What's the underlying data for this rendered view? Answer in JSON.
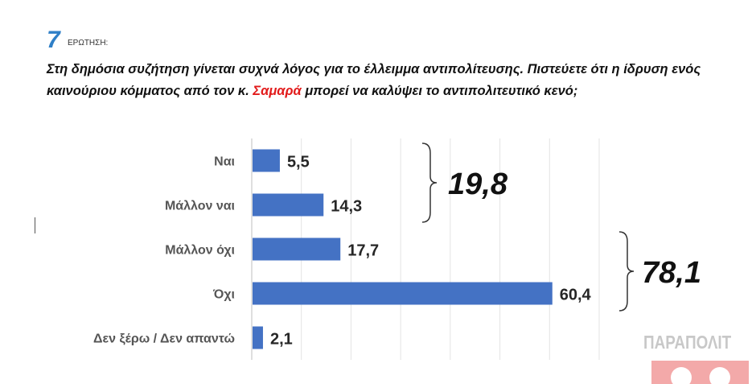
{
  "question": {
    "number": "7",
    "label": "ΕΡΩΤΗΣΗ:",
    "text_before": "Στη δημόσια συζήτηση γίνεται συχνά λόγος για το έλλειμμα αντιπολίτευσης. Πιστεύετε ότι η ίδρυση ενός καινούριου κόμματος από τον κ. ",
    "highlight": "Σαμαρά",
    "text_after": " μπορεί να καλύψει το αντιπολιτευτικό κενό;",
    "highlight_color": "#e21b1b"
  },
  "chart_data": {
    "type": "bar",
    "orientation": "horizontal",
    "categories": [
      "Ναι",
      "Μάλλον ναι",
      "Μάλλον όχι",
      "Όχι",
      "Δεν ξέρω / Δεν απαντώ"
    ],
    "values": [
      5.5,
      14.3,
      17.7,
      60.4,
      2.1
    ],
    "value_labels": [
      "5,5",
      "14,3",
      "17,7",
      "60,4",
      "2,1"
    ],
    "xlim": [
      0,
      70
    ],
    "grid": true,
    "bar_color": "#4472c4",
    "groups": [
      {
        "members": [
          "Ναι",
          "Μάλλον ναι"
        ],
        "total": 19.8,
        "label": "19,8"
      },
      {
        "members": [
          "Μάλλον όχι",
          "Όχι"
        ],
        "total": 78.1,
        "label": "78,1"
      }
    ]
  },
  "logo": {
    "text": "ΠΑΡΑΠΟΛΙΤ"
  }
}
